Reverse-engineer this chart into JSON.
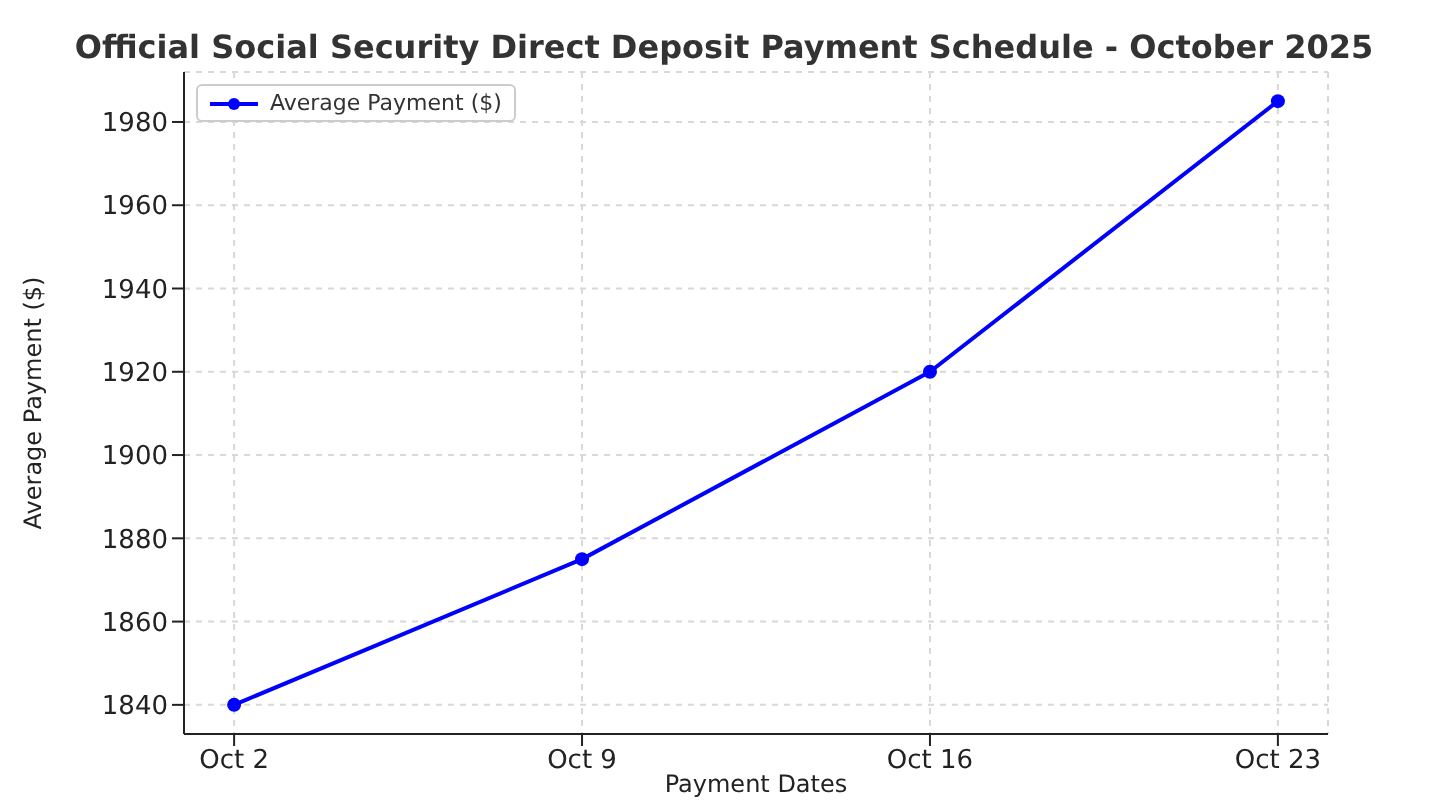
{
  "chart_data": {
    "type": "line",
    "title": "Official Social Security Direct Deposit Payment Schedule - October 2025",
    "xlabel": "Payment Dates",
    "ylabel": "Average Payment ($)",
    "categories": [
      "Oct 2",
      "Oct 9",
      "Oct 16",
      "Oct 23"
    ],
    "series": [
      {
        "name": "Average Payment ($)",
        "color": "#0000ff",
        "values": [
          1840,
          1875,
          1920,
          1985
        ]
      }
    ],
    "ylim": [
      1833,
      1992
    ],
    "yticks": [
      1840,
      1860,
      1880,
      1900,
      1920,
      1940,
      1960,
      1980
    ],
    "grid": true,
    "legend": "top left",
    "marker": "circle",
    "line_style": "solid"
  }
}
